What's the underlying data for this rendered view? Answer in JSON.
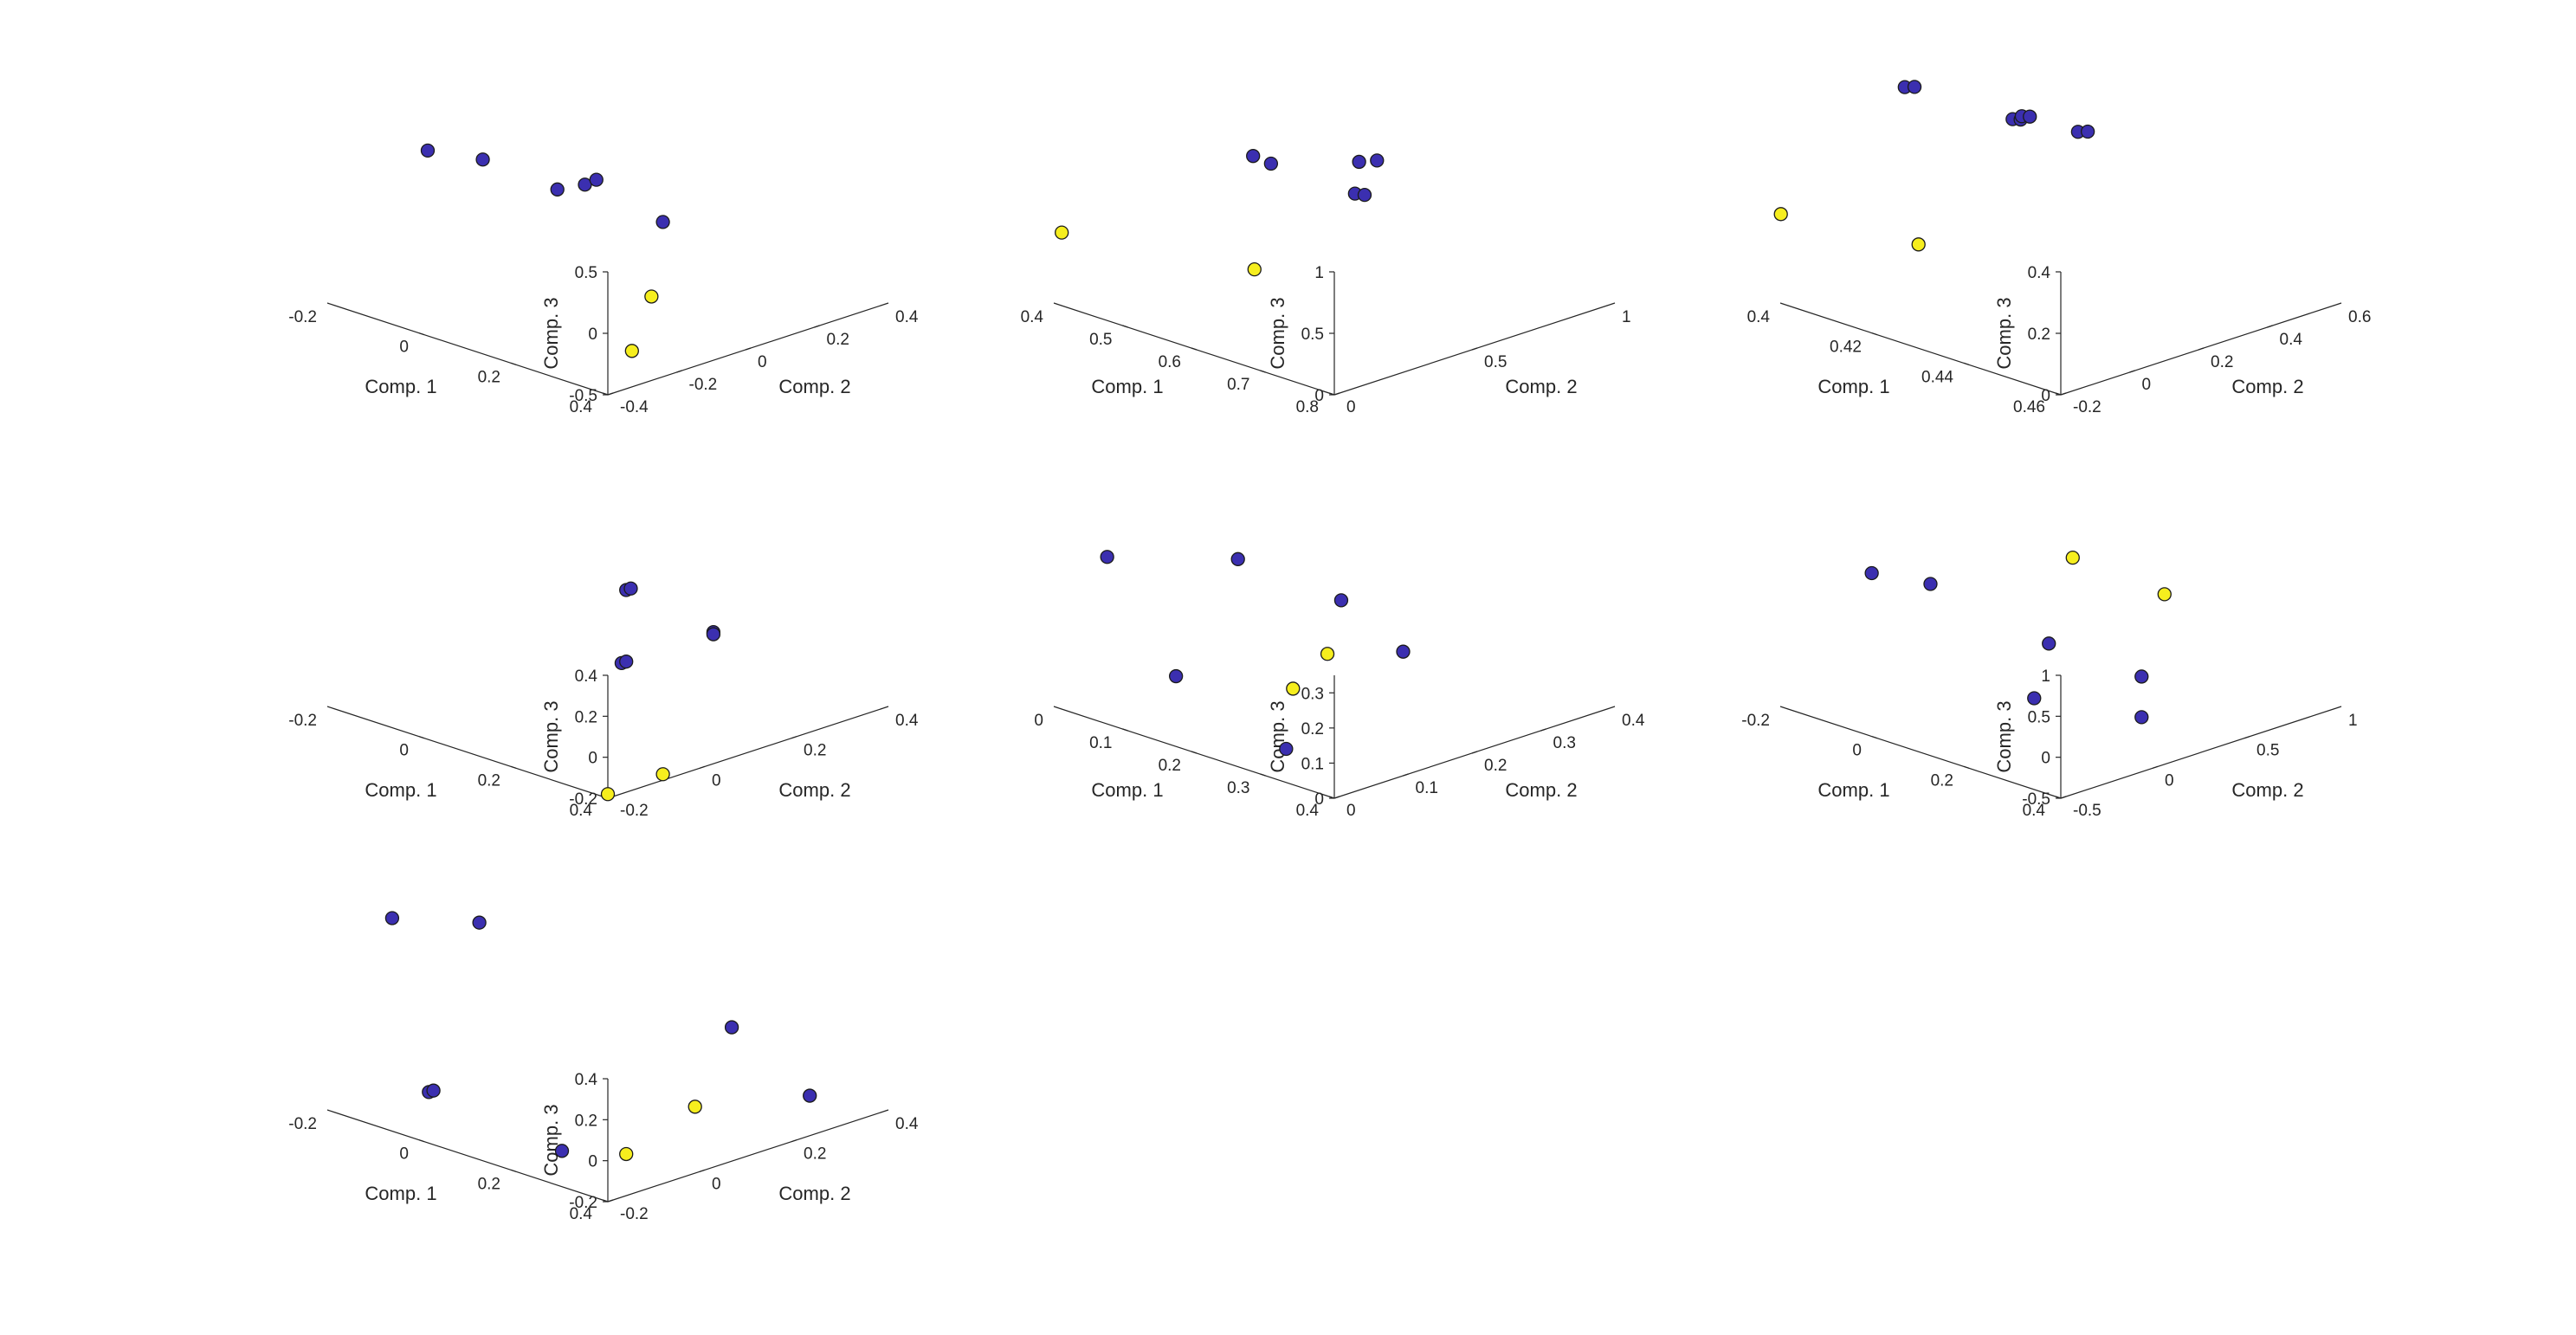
{
  "colors": {
    "class_a": "#3b2fb0",
    "class_b": "#f6ee1e",
    "outline": "#1b1b1b",
    "axis": "#262626"
  },
  "chart_data": [
    {
      "type": "scatter3d",
      "xlabel": "Comp. 1",
      "ylabel": "Comp. 2",
      "zlabel": "Comp. 3",
      "grid": false,
      "xlim": [
        -0.2,
        0.4
      ],
      "ylim": [
        -0.4,
        0.4
      ],
      "zlim": [
        -0.5,
        0.5
      ],
      "xticks": [
        {
          "v": -0.2,
          "t": "-0.2"
        },
        {
          "v": 0,
          "t": "0"
        },
        {
          "v": 0.2,
          "t": "0.2"
        },
        {
          "v": 0.4,
          "t": "0.4"
        }
      ],
      "yticks": [
        {
          "v": -0.4,
          "t": "-0.4"
        },
        {
          "v": -0.2,
          "t": "-0.2"
        },
        {
          "v": 0,
          "t": "0"
        },
        {
          "v": 0.2,
          "t": "0.2"
        },
        {
          "v": 0.4,
          "t": "0.4"
        }
      ],
      "zticks": [
        {
          "v": -0.5,
          "t": "-0.5"
        },
        {
          "v": 0,
          "t": "0"
        },
        {
          "v": 0.5,
          "t": "0.5"
        }
      ],
      "points": [
        {
          "x": -0.18,
          "y": -0.15,
          "z": 0.55,
          "c": 0
        },
        {
          "x": -0.09,
          "y": -0.11,
          "z": 0.55,
          "c": 0
        },
        {
          "x": 0.05,
          "y": -0.08,
          "z": 0.45,
          "c": 0
        },
        {
          "x": 0.13,
          "y": 0.12,
          "z": 0.1,
          "c": 0
        },
        {
          "x": -0.1,
          "y": 0.2,
          "z": 0.05,
          "c": 0
        },
        {
          "x": -0.12,
          "y": 0.26,
          "z": 0.01,
          "c": 0
        },
        {
          "x": 0.28,
          "y": -0.17,
          "z": -0.5,
          "c": 1
        },
        {
          "x": 0.12,
          "y": 0.1,
          "z": -0.5,
          "c": 1
        }
      ]
    },
    {
      "type": "scatter3d",
      "xlabel": "Comp. 1",
      "ylabel": "Comp. 2",
      "zlabel": "Comp. 3",
      "grid": false,
      "xlim": [
        0.4,
        0.8
      ],
      "ylim": [
        0,
        1
      ],
      "zlim": [
        0,
        1
      ],
      "xticks": [
        {
          "v": 0.4,
          "t": "0.4"
        },
        {
          "v": 0.5,
          "t": "0.5"
        },
        {
          "v": 0.6,
          "t": "0.6"
        },
        {
          "v": 0.7,
          "t": "0.7"
        },
        {
          "v": 0.8,
          "t": "0.8"
        }
      ],
      "yticks": [
        {
          "v": 0,
          "t": "0"
        },
        {
          "v": 0.5,
          "t": "0.5"
        },
        {
          "v": 1,
          "t": "1"
        }
      ],
      "zticks": [
        {
          "v": 0,
          "t": "0"
        },
        {
          "v": 0.5,
          "t": "0.5"
        },
        {
          "v": 1,
          "t": "1"
        }
      ],
      "points": [
        {
          "x": 0.47,
          "y": 0.53,
          "z": 0.95,
          "c": 0
        },
        {
          "x": 0.5,
          "y": 0.52,
          "z": 0.95,
          "c": 0
        },
        {
          "x": 0.56,
          "y": 0.69,
          "z": 0.95,
          "c": 0
        },
        {
          "x": 0.57,
          "y": 0.73,
          "z": 0.95,
          "c": 0
        },
        {
          "x": 0.45,
          "y": 0.95,
          "z": 0.3,
          "c": 0
        },
        {
          "x": 0.46,
          "y": 0.96,
          "z": 0.3,
          "c": 0
        },
        {
          "x": 0.4,
          "y": 0.01,
          "z": 0.58,
          "c": 1
        },
        {
          "x": 0.6,
          "y": 0.21,
          "z": 0.5,
          "c": 1
        }
      ]
    },
    {
      "type": "scatter3d",
      "xlabel": "Comp. 1",
      "ylabel": "Comp. 2",
      "zlabel": "Comp. 3",
      "grid": false,
      "xlim": [
        0.4,
        0.46
      ],
      "ylim": [
        -0.2,
        0.6
      ],
      "zlim": [
        0,
        0.4
      ],
      "xticks": [
        {
          "v": 0.4,
          "t": "0.4"
        },
        {
          "v": 0.42,
          "t": "0.42"
        },
        {
          "v": 0.44,
          "t": "0.44"
        },
        {
          "v": 0.46,
          "t": "0.46"
        }
      ],
      "yticks": [
        {
          "v": -0.2,
          "t": "-0.2"
        },
        {
          "v": 0,
          "t": "0"
        },
        {
          "v": 0.2,
          "t": "0.2"
        },
        {
          "v": 0.4,
          "t": "0.4"
        },
        {
          "v": 0.6,
          "t": "0.6"
        }
      ],
      "zticks": [
        {
          "v": 0,
          "t": "0"
        },
        {
          "v": 0.2,
          "t": "0.2"
        },
        {
          "v": 0.4,
          "t": "0.4"
        }
      ],
      "points": [
        {
          "x": 0.405,
          "y": 0.08,
          "z": 0.63,
          "c": 0
        },
        {
          "x": 0.406,
          "y": 0.095,
          "z": 0.63,
          "c": 0
        },
        {
          "x": 0.409,
          "y": 0.34,
          "z": 0.45,
          "c": 0
        },
        {
          "x": 0.41,
          "y": 0.35,
          "z": 0.45,
          "c": 0
        },
        {
          "x": 0.408,
          "y": 0.38,
          "z": 0.44,
          "c": 0
        },
        {
          "x": 0.409,
          "y": 0.39,
          "z": 0.44,
          "c": 0
        },
        {
          "x": 0.406,
          "y": 0.57,
          "z": 0.31,
          "c": 0
        },
        {
          "x": 0.407,
          "y": 0.585,
          "z": 0.31,
          "c": 0
        },
        {
          "x": 0.399,
          "y": -0.2,
          "z": 0.29,
          "c": 1
        },
        {
          "x": 0.42,
          "y": -0.08,
          "z": 0.25,
          "c": 1
        }
      ]
    },
    {
      "type": "scatter3d",
      "xlabel": "Comp. 1",
      "ylabel": "Comp. 2",
      "zlabel": "Comp. 3",
      "grid": false,
      "xlim": [
        -0.2,
        0.4
      ],
      "ylim": [
        -0.2,
        0.4
      ],
      "zlim": [
        -0.2,
        0.4
      ],
      "xticks": [
        {
          "v": -0.2,
          "t": "-0.2"
        },
        {
          "v": 0,
          "t": "0"
        },
        {
          "v": 0.2,
          "t": "0.2"
        },
        {
          "v": 0.4,
          "t": "0.4"
        }
      ],
      "yticks": [
        {
          "v": -0.2,
          "t": "-0.2"
        },
        {
          "v": 0,
          "t": "0"
        },
        {
          "v": 0.2,
          "t": "0.2"
        },
        {
          "v": 0.4,
          "t": "0.4"
        }
      ],
      "zticks": [
        {
          "v": -0.2,
          "t": "-0.2"
        },
        {
          "v": 0,
          "t": "0"
        },
        {
          "v": 0.2,
          "t": "0.2"
        },
        {
          "v": 0.4,
          "t": "0.4"
        }
      ],
      "points": [
        {
          "x": 0.17,
          "y": 0.07,
          "z": 0.45,
          "c": 0
        },
        {
          "x": 0.17,
          "y": 0.08,
          "z": 0.45,
          "c": 0
        },
        {
          "x": 0.19,
          "y": 0.04,
          "z": 0.13,
          "c": 0
        },
        {
          "x": 0.19,
          "y": 0.05,
          "z": 0.13,
          "c": 0
        },
        {
          "x": 0.03,
          "y": 0.4,
          "z": -0.1,
          "c": 0
        },
        {
          "x": 0.03,
          "y": 0.4,
          "z": -0.11,
          "c": 0
        },
        {
          "x": 0.4,
          "y": -0.2,
          "z": -0.18,
          "c": 1
        },
        {
          "x": 0.38,
          "y": -0.06,
          "z": -0.2,
          "c": 1
        }
      ]
    },
    {
      "type": "scatter3d",
      "xlabel": "Comp. 1",
      "ylabel": "Comp. 2",
      "zlabel": "Comp. 3",
      "grid": false,
      "xlim": [
        0,
        0.4
      ],
      "ylim": [
        0,
        0.4
      ],
      "zlim": [
        0,
        0.35
      ],
      "xticks": [
        {
          "v": 0,
          "t": "0"
        },
        {
          "v": 0.1,
          "t": "0.1"
        },
        {
          "v": 0.2,
          "t": "0.2"
        },
        {
          "v": 0.3,
          "t": "0.3"
        },
        {
          "v": 0.4,
          "t": "0.4"
        }
      ],
      "yticks": [
        {
          "v": 0,
          "t": "0"
        },
        {
          "v": 0.1,
          "t": "0.1"
        },
        {
          "v": 0.2,
          "t": "0.2"
        },
        {
          "v": 0.3,
          "t": "0.3"
        },
        {
          "v": 0.4,
          "t": "0.4"
        }
      ],
      "zticks": [
        {
          "v": 0,
          "t": "0"
        },
        {
          "v": 0.1,
          "t": "0.1"
        },
        {
          "v": 0.2,
          "t": "0.2"
        },
        {
          "v": 0.3,
          "t": "0.3"
        }
      ],
      "points": [
        {
          "x": 0.05,
          "y": 0.02,
          "z": 0.45,
          "c": 0
        },
        {
          "x": 0.15,
          "y": 0.11,
          "z": 0.45,
          "c": 0
        },
        {
          "x": 0.17,
          "y": 0,
          "z": 0.2,
          "c": 0
        },
        {
          "x": 0.31,
          "y": 0.02,
          "z": 0.07,
          "c": 0
        },
        {
          "x": 0.02,
          "y": 0.39,
          "z": 0.07,
          "c": 0
        },
        {
          "x": 0.14,
          "y": 0.36,
          "z": 0.02,
          "c": 0
        },
        {
          "x": 0.15,
          "y": 0.19,
          "z": 0.03,
          "c": 1
        },
        {
          "x": 0.09,
          "y": 0.3,
          "z": 0.02,
          "c": 1
        }
      ]
    },
    {
      "type": "scatter3d",
      "xlabel": "Comp. 1",
      "ylabel": "Comp. 2",
      "zlabel": "Comp. 3",
      "grid": false,
      "xlim": [
        -0.2,
        0.4
      ],
      "ylim": [
        -0.5,
        1
      ],
      "zlim": [
        -0.5,
        1
      ],
      "xticks": [
        {
          "v": -0.2,
          "t": "-0.2"
        },
        {
          "v": 0,
          "t": "0"
        },
        {
          "v": 0.2,
          "t": "0.2"
        },
        {
          "v": 0.4,
          "t": "0.4"
        }
      ],
      "yticks": [
        {
          "v": -0.5,
          "t": "-0.5"
        },
        {
          "v": 0,
          "t": "0"
        },
        {
          "v": 0.5,
          "t": "0.5"
        },
        {
          "v": 1,
          "t": "1"
        }
      ],
      "zticks": [
        {
          "v": -0.5,
          "t": "-0.5"
        },
        {
          "v": 0,
          "t": "0"
        },
        {
          "v": 0.5,
          "t": "0.5"
        },
        {
          "v": 1,
          "t": "1"
        }
      ],
      "points": [
        {
          "x": -0.16,
          "y": -0.13,
          "z": 0.95,
          "c": 0
        },
        {
          "x": -0.06,
          "y": -0.06,
          "z": 0.95,
          "c": 0
        },
        {
          "x": 0.27,
          "y": -0.32,
          "z": 0.35,
          "c": 0
        },
        {
          "x": 0.36,
          "y": 0.04,
          "z": 0.02,
          "c": 0
        },
        {
          "x": 0.03,
          "y": 0.36,
          "z": 0.08,
          "c": 0
        },
        {
          "x": 0.2,
          "y": 0.44,
          "z": -0.07,
          "c": 0
        },
        {
          "x": -0.17,
          "y": 0.99,
          "z": 0.3,
          "c": 1
        },
        {
          "x": 0.03,
          "y": 0.99,
          "z": 0.22,
          "c": 1
        }
      ]
    },
    {
      "type": "scatter3d",
      "xlabel": "Comp. 1",
      "ylabel": "Comp. 2",
      "zlabel": "Comp. 3",
      "grid": false,
      "xlim": [
        -0.2,
        0.4
      ],
      "ylim": [
        -0.2,
        0.4
      ],
      "zlim": [
        -0.2,
        0.4
      ],
      "xticks": [
        {
          "v": -0.2,
          "t": "-0.2"
        },
        {
          "v": 0,
          "t": "0"
        },
        {
          "v": 0.2,
          "t": "0.2"
        },
        {
          "v": 0.4,
          "t": "0.4"
        }
      ],
      "yticks": [
        {
          "v": -0.2,
          "t": "-0.2"
        },
        {
          "v": 0,
          "t": "0"
        },
        {
          "v": 0.2,
          "t": "0.2"
        },
        {
          "v": 0.4,
          "t": "0.4"
        }
      ],
      "zticks": [
        {
          "v": -0.2,
          "t": "-0.2"
        },
        {
          "v": 0,
          "t": "0"
        },
        {
          "v": 0.2,
          "t": "0.2"
        },
        {
          "v": 0.4,
          "t": "0.4"
        }
      ],
      "points": [
        {
          "x": -0.22,
          "y": -0.05,
          "z": 0.62,
          "c": 0
        },
        {
          "x": -0.11,
          "y": 0.03,
          "z": 0.62,
          "c": 0
        },
        {
          "x": -0.01,
          "y": -0.18,
          "z": 0.02,
          "c": 0
        },
        {
          "x": -0.01,
          "y": -0.17,
          "z": 0.02,
          "c": 0
        },
        {
          "x": 0.29,
          "y": -0.19,
          "z": -0.04,
          "c": 0
        },
        {
          "x": 0.07,
          "y": 0.4,
          "z": -0.03,
          "c": 0
        },
        {
          "x": 0.26,
          "y": 0.38,
          "z": -0.21,
          "c": 0
        },
        {
          "x": 0.35,
          "y": -0.11,
          "z": -0.07,
          "c": 1
        },
        {
          "x": 0.24,
          "y": 0.15,
          "z": -0.11,
          "c": 1
        }
      ]
    }
  ]
}
